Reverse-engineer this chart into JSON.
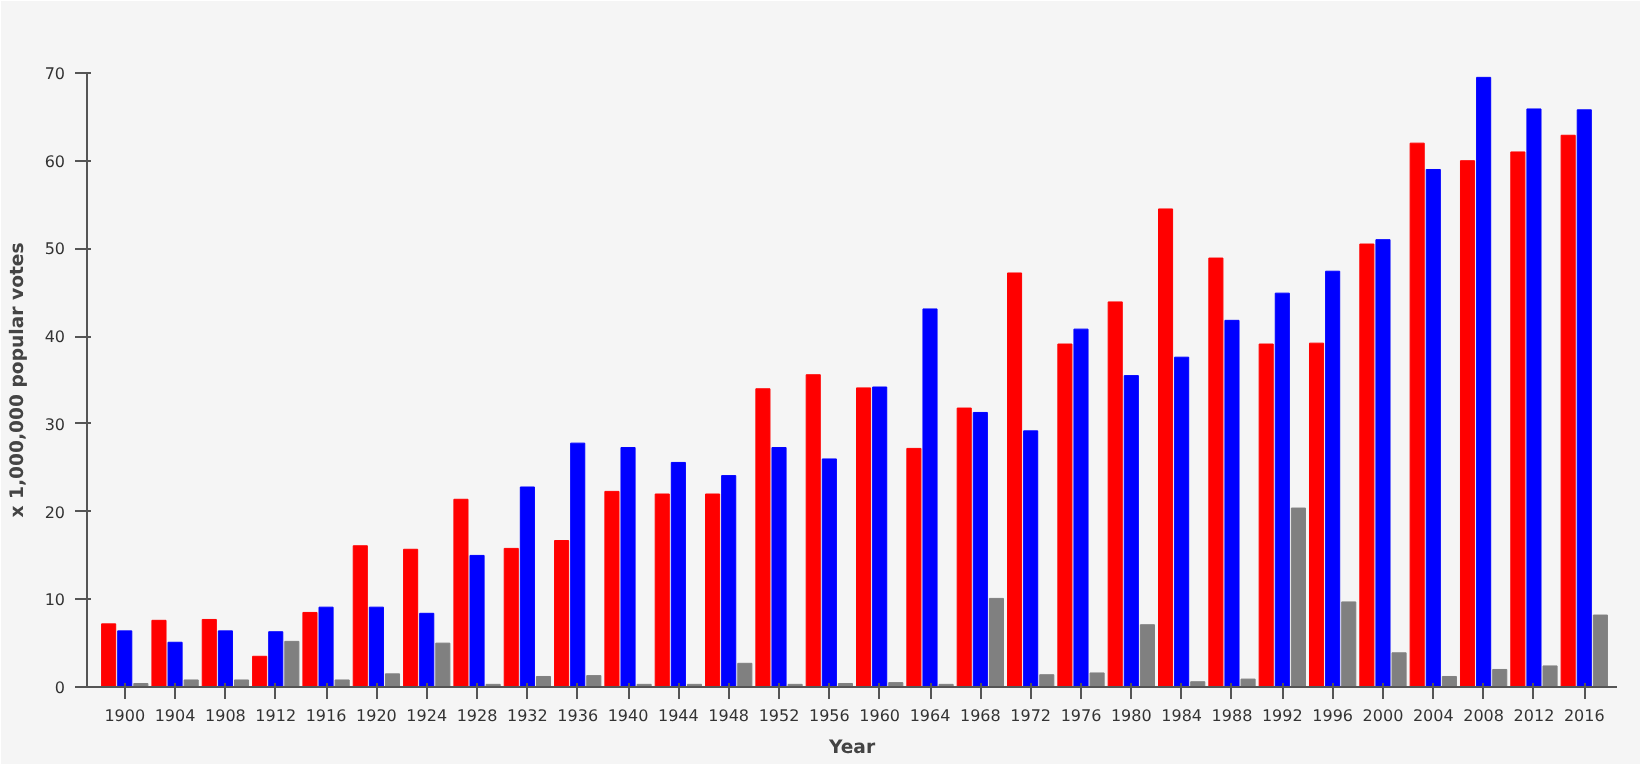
{
  "chart_data": {
    "type": "bar",
    "xlabel": "Year",
    "ylabel": "x 1,000,000 popular votes",
    "categories": [
      "1900",
      "1904",
      "1908",
      "1912",
      "1916",
      "1920",
      "1924",
      "1928",
      "1932",
      "1936",
      "1940",
      "1944",
      "1948",
      "1952",
      "1956",
      "1960",
      "1964",
      "1968",
      "1972",
      "1976",
      "1980",
      "1984",
      "1988",
      "1992",
      "1996",
      "2000",
      "2004",
      "2008",
      "2012",
      "2016"
    ],
    "series": [
      {
        "color": "#ff0000",
        "values": [
          7.2,
          7.6,
          7.7,
          3.5,
          8.5,
          16.1,
          15.7,
          21.4,
          15.8,
          16.7,
          22.3,
          22.0,
          22.0,
          34.0,
          35.6,
          34.1,
          27.2,
          31.8,
          47.2,
          39.1,
          43.9,
          54.5,
          48.9,
          39.1,
          39.2,
          50.5,
          62.0,
          60.0,
          61.0,
          62.9
        ]
      },
      {
        "color": "#0000ff",
        "values": [
          6.4,
          5.1,
          6.4,
          6.3,
          9.1,
          9.1,
          8.4,
          15.0,
          22.8,
          27.8,
          27.3,
          25.6,
          24.1,
          27.3,
          26.0,
          34.2,
          43.1,
          31.3,
          29.2,
          40.8,
          35.5,
          37.6,
          41.8,
          44.9,
          47.4,
          51.0,
          59.0,
          69.5,
          65.9,
          65.8
        ]
      },
      {
        "color": "#808080",
        "values": [
          0.4,
          0.8,
          0.8,
          5.2,
          0.8,
          1.5,
          5.0,
          0.3,
          1.2,
          1.3,
          0.3,
          0.3,
          2.7,
          0.3,
          0.4,
          0.5,
          0.3,
          10.1,
          1.4,
          1.6,
          7.1,
          0.6,
          0.9,
          20.4,
          9.7,
          3.9,
          1.2,
          2.0,
          2.4,
          8.2
        ]
      }
    ],
    "ylim": [
      0,
      70
    ],
    "yticks": [
      0,
      10,
      20,
      30,
      40,
      50,
      60,
      70
    ],
    "grid": false
  }
}
